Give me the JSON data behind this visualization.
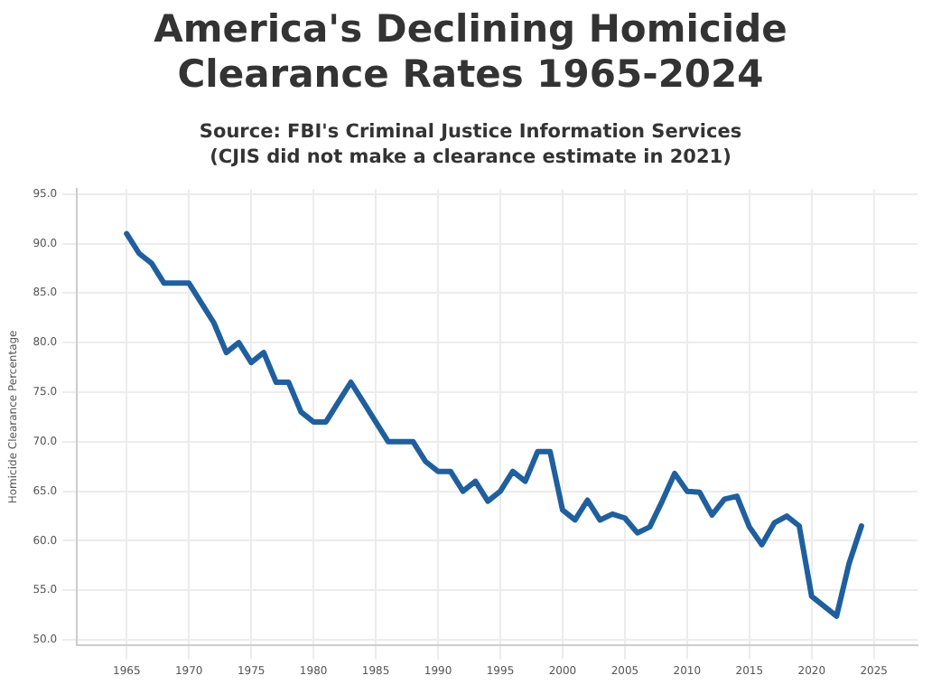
{
  "chart_data": {
    "type": "line",
    "title": "America's Declining Homicide Clearance Rates 1965-2024",
    "subtitle": "Source: FBI's Criminal Justice Information Services\n(CJIS did not make a clearance estimate in 2021)",
    "ylabel": "Homicide Clearance Percentage",
    "x": [
      1965,
      1966,
      1967,
      1968,
      1969,
      1970,
      1971,
      1972,
      1973,
      1974,
      1975,
      1976,
      1977,
      1978,
      1979,
      1980,
      1981,
      1982,
      1983,
      1984,
      1985,
      1986,
      1987,
      1988,
      1989,
      1990,
      1991,
      1992,
      1993,
      1994,
      1995,
      1996,
      1997,
      1998,
      1999,
      2000,
      2001,
      2002,
      2003,
      2004,
      2005,
      2006,
      2007,
      2008,
      2009,
      2010,
      2011,
      2012,
      2013,
      2014,
      2015,
      2016,
      2017,
      2018,
      2019,
      2020,
      2021,
      2022,
      2023,
      2024
    ],
    "series": [
      {
        "color": "#1f5f9e",
        "values": [
          91,
          89,
          88,
          86,
          86,
          86,
          84,
          82,
          79,
          80,
          78,
          79,
          76,
          76,
          73,
          72,
          72,
          74,
          76,
          74,
          72,
          70,
          70,
          70,
          68,
          67,
          67,
          65,
          66,
          64,
          65,
          67,
          66,
          69,
          69,
          63.1,
          62.1,
          64.1,
          62.1,
          62.7,
          62.3,
          60.8,
          61.4,
          64,
          66.8,
          65,
          64.9,
          62.6,
          64.2,
          64.5,
          61.4,
          59.6,
          61.8,
          62.5,
          61.5,
          54.4,
          null,
          52.4,
          57.7,
          61.5
        ]
      }
    ],
    "xlim": [
      1961,
      2028.5
    ],
    "xticks": [
      1965,
      1970,
      1975,
      1980,
      1985,
      1990,
      1995,
      2000,
      2005,
      2010,
      2015,
      2020,
      2025
    ],
    "ylim": [
      49.5,
      95.5
    ],
    "yticks": [
      {
        "value": 50,
        "label": "50.0"
      },
      {
        "value": 55,
        "label": "55.0"
      },
      {
        "value": 60,
        "label": "60.0"
      },
      {
        "value": 65,
        "label": "65.0"
      },
      {
        "value": 70,
        "label": "70.0"
      },
      {
        "value": 75,
        "label": "75.0"
      },
      {
        "value": 80,
        "label": "80.0"
      },
      {
        "value": 85,
        "label": "85.0"
      },
      {
        "value": 90,
        "label": "90.0"
      },
      {
        "value": 95,
        "label": "95.0"
      }
    ],
    "grid": true,
    "marker": "none",
    "line_style": "solid",
    "legend": false
  }
}
